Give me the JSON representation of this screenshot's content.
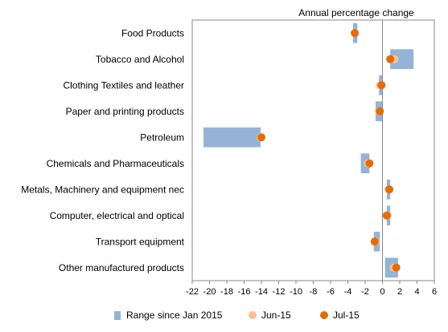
{
  "chart_data": {
    "type": "range-dot",
    "subtitle": "Annual percentage change",
    "categories": [
      "Food Products",
      "Tobacco and Alcohol",
      "Clothing Textiles and leather",
      "Paper and printing products",
      "Petroleum",
      "Chemicals and Pharmaceuticals",
      "Metals, Machinery and equipment nec",
      "Computer, electrical and optical",
      "Transport equipment",
      "Other manufactured products"
    ],
    "series": [
      {
        "name": "Range since Jan 2015",
        "kind": "range",
        "color": "#95b3d7",
        "values": [
          [
            -3.4,
            -2.9
          ],
          [
            0.9,
            3.6
          ],
          [
            -0.4,
            0.0
          ],
          [
            -0.8,
            0.0
          ],
          [
            -20.7,
            -14.1
          ],
          [
            -2.5,
            -1.5
          ],
          [
            0.5,
            0.9
          ],
          [
            0.5,
            0.9
          ],
          [
            -1.0,
            -0.3
          ],
          [
            0.3,
            1.8
          ]
        ]
      },
      {
        "name": "Jun-15",
        "kind": "point",
        "color": "#fac090",
        "values": [
          -3.2,
          1.4,
          -0.3,
          -0.4,
          -14.1,
          -1.7,
          0.7,
          0.6,
          -0.8,
          1.3
        ]
      },
      {
        "name": "Jul-15",
        "kind": "point",
        "color": "#e36c09",
        "values": [
          -3.2,
          0.9,
          -0.1,
          -0.3,
          -14.0,
          -1.5,
          0.8,
          0.5,
          -0.9,
          1.6
        ]
      }
    ],
    "x_ticks": [
      "-22",
      "-20",
      "-18",
      "-16",
      "-14",
      "-12",
      "-10",
      "-8",
      "-6",
      "-4",
      "-2",
      "0",
      "2",
      "4",
      "6"
    ],
    "xlim": [
      -22,
      6
    ],
    "grid": false,
    "legend_position": "bottom"
  }
}
